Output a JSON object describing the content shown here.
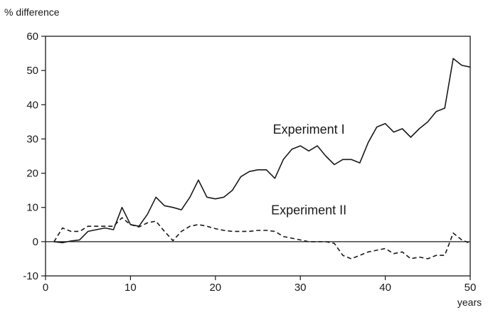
{
  "chart_data": {
    "type": "line",
    "title": "",
    "ylabel": "% difference",
    "xlabel": "years",
    "xlim": [
      0,
      50
    ],
    "ylim": [
      -10,
      60
    ],
    "xticks": [
      0,
      10,
      20,
      30,
      40,
      50
    ],
    "xtick_labels": [
      "0",
      "10",
      "20",
      "30",
      "40",
      "50"
    ],
    "yticks": [
      -10,
      0,
      10,
      20,
      30,
      40,
      50,
      60
    ],
    "ytick_labels": [
      "-10",
      "0",
      "10",
      "20",
      "30",
      "40",
      "50",
      "60"
    ],
    "zero_line": true,
    "grid": false,
    "legend": "inline labels",
    "series": [
      {
        "name": "Experiment I",
        "style": "solid",
        "color": "#1a1a1a",
        "x": [
          1,
          2,
          3,
          4,
          5,
          6,
          7,
          8,
          9,
          10,
          11,
          12,
          13,
          14,
          15,
          16,
          17,
          18,
          19,
          20,
          21,
          22,
          23,
          24,
          25,
          26,
          27,
          28,
          29,
          30,
          31,
          32,
          33,
          34,
          35,
          36,
          37,
          38,
          39,
          40,
          41,
          42,
          43,
          44,
          45,
          46,
          47,
          48,
          49,
          50
        ],
        "y": [
          0,
          -0.3,
          0.2,
          0.5,
          3,
          3.5,
          4,
          3.5,
          10,
          5,
          4.5,
          8,
          13,
          10.5,
          10,
          9.3,
          13,
          18,
          13,
          12.5,
          13,
          15,
          19,
          20.5,
          21,
          21,
          18.5,
          24,
          27,
          28,
          26.5,
          28,
          25,
          22.5,
          24,
          24,
          23,
          29,
          33.5,
          34.5,
          32,
          33,
          30.5,
          33,
          35,
          38,
          39,
          53.5,
          51.5,
          51
        ]
      },
      {
        "name": "Experiment II",
        "style": "dashed",
        "color": "#1a1a1a",
        "x": [
          1,
          2,
          3,
          4,
          5,
          6,
          7,
          8,
          9,
          10,
          11,
          12,
          13,
          14,
          15,
          16,
          17,
          18,
          19,
          20,
          21,
          22,
          23,
          24,
          25,
          26,
          27,
          28,
          29,
          30,
          31,
          32,
          33,
          34,
          35,
          36,
          37,
          38,
          39,
          40,
          41,
          42,
          43,
          44,
          45,
          46,
          47,
          48,
          49,
          50
        ],
        "y": [
          0,
          4,
          3,
          3,
          4.5,
          4.5,
          4.5,
          4.5,
          7,
          5,
          4.3,
          5.5,
          6,
          3,
          0.3,
          3,
          4.5,
          5,
          4.5,
          3.8,
          3.3,
          3,
          3,
          3,
          3.3,
          3.3,
          3,
          1.5,
          1,
          0.5,
          0,
          0,
          0,
          -0.5,
          -4,
          -5,
          -4,
          -3,
          -2.5,
          -2,
          -3.5,
          -3,
          -5,
          -4.5,
          -5,
          -4,
          -4,
          2.5,
          0.5,
          -0.5
        ]
      }
    ],
    "series_labels": [
      {
        "text": "Experiment I",
        "x": 31,
        "y": 31.5
      },
      {
        "text": "Experiment II",
        "x": 31,
        "y": 8
      }
    ]
  }
}
